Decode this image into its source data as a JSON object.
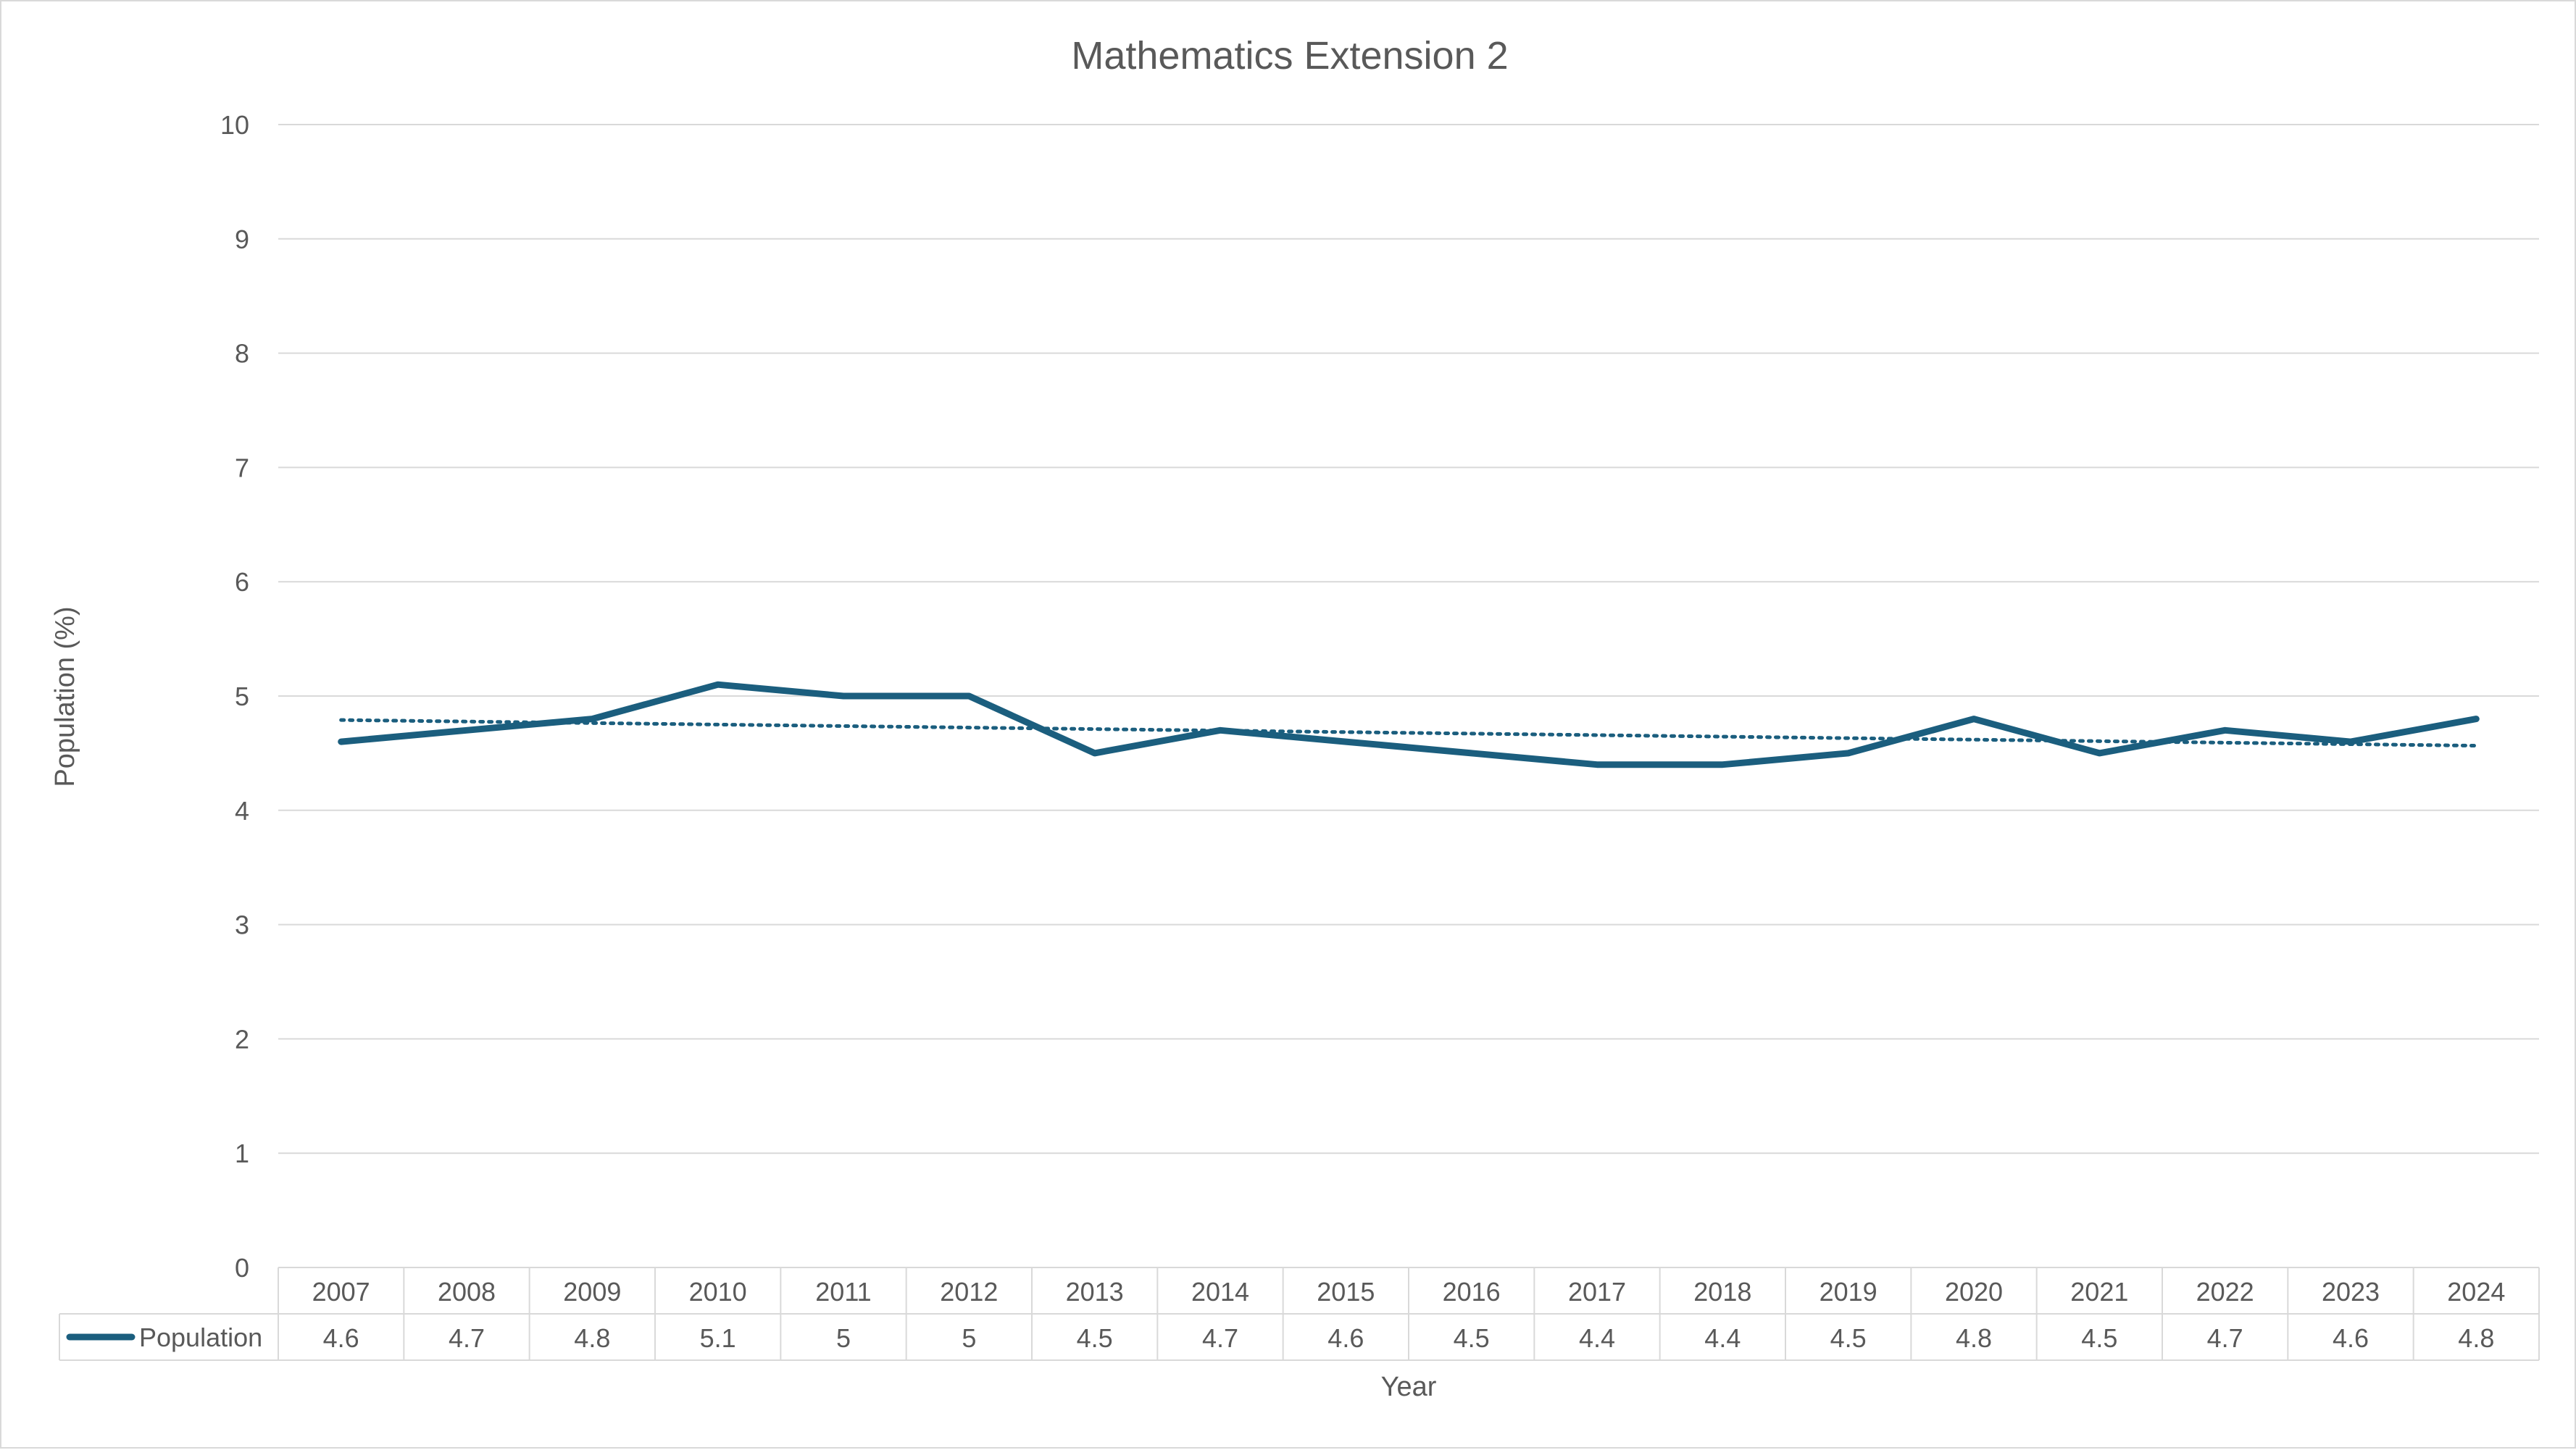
{
  "chart_data": {
    "type": "line",
    "title": "Mathematics Extension 2",
    "xlabel": "Year",
    "ylabel": "Population (%)",
    "ylim": [
      0,
      10
    ],
    "yticks": [
      0,
      1,
      2,
      3,
      4,
      5,
      6,
      7,
      8,
      9,
      10
    ],
    "grid": true,
    "legend": "data-table",
    "trendline": "linear",
    "categories": [
      "2007",
      "2008",
      "2009",
      "2010",
      "2011",
      "2012",
      "2013",
      "2014",
      "2015",
      "2016",
      "2017",
      "2018",
      "2019",
      "2020",
      "2021",
      "2022",
      "2023",
      "2024"
    ],
    "series": [
      {
        "name": "Population",
        "color": "#1b5e7e",
        "values": [
          4.6,
          4.7,
          4.8,
          5.1,
          5,
          5,
          4.5,
          4.7,
          4.6,
          4.5,
          4.4,
          4.4,
          4.5,
          4.8,
          4.5,
          4.7,
          4.6,
          4.8
        ],
        "labels": [
          "4.6",
          "4.7",
          "4.8",
          "5.1",
          "5",
          "5",
          "4.5",
          "4.7",
          "4.6",
          "4.5",
          "4.4",
          "4.4",
          "4.5",
          "4.8",
          "4.5",
          "4.7",
          "4.6",
          "4.8"
        ]
      }
    ]
  }
}
